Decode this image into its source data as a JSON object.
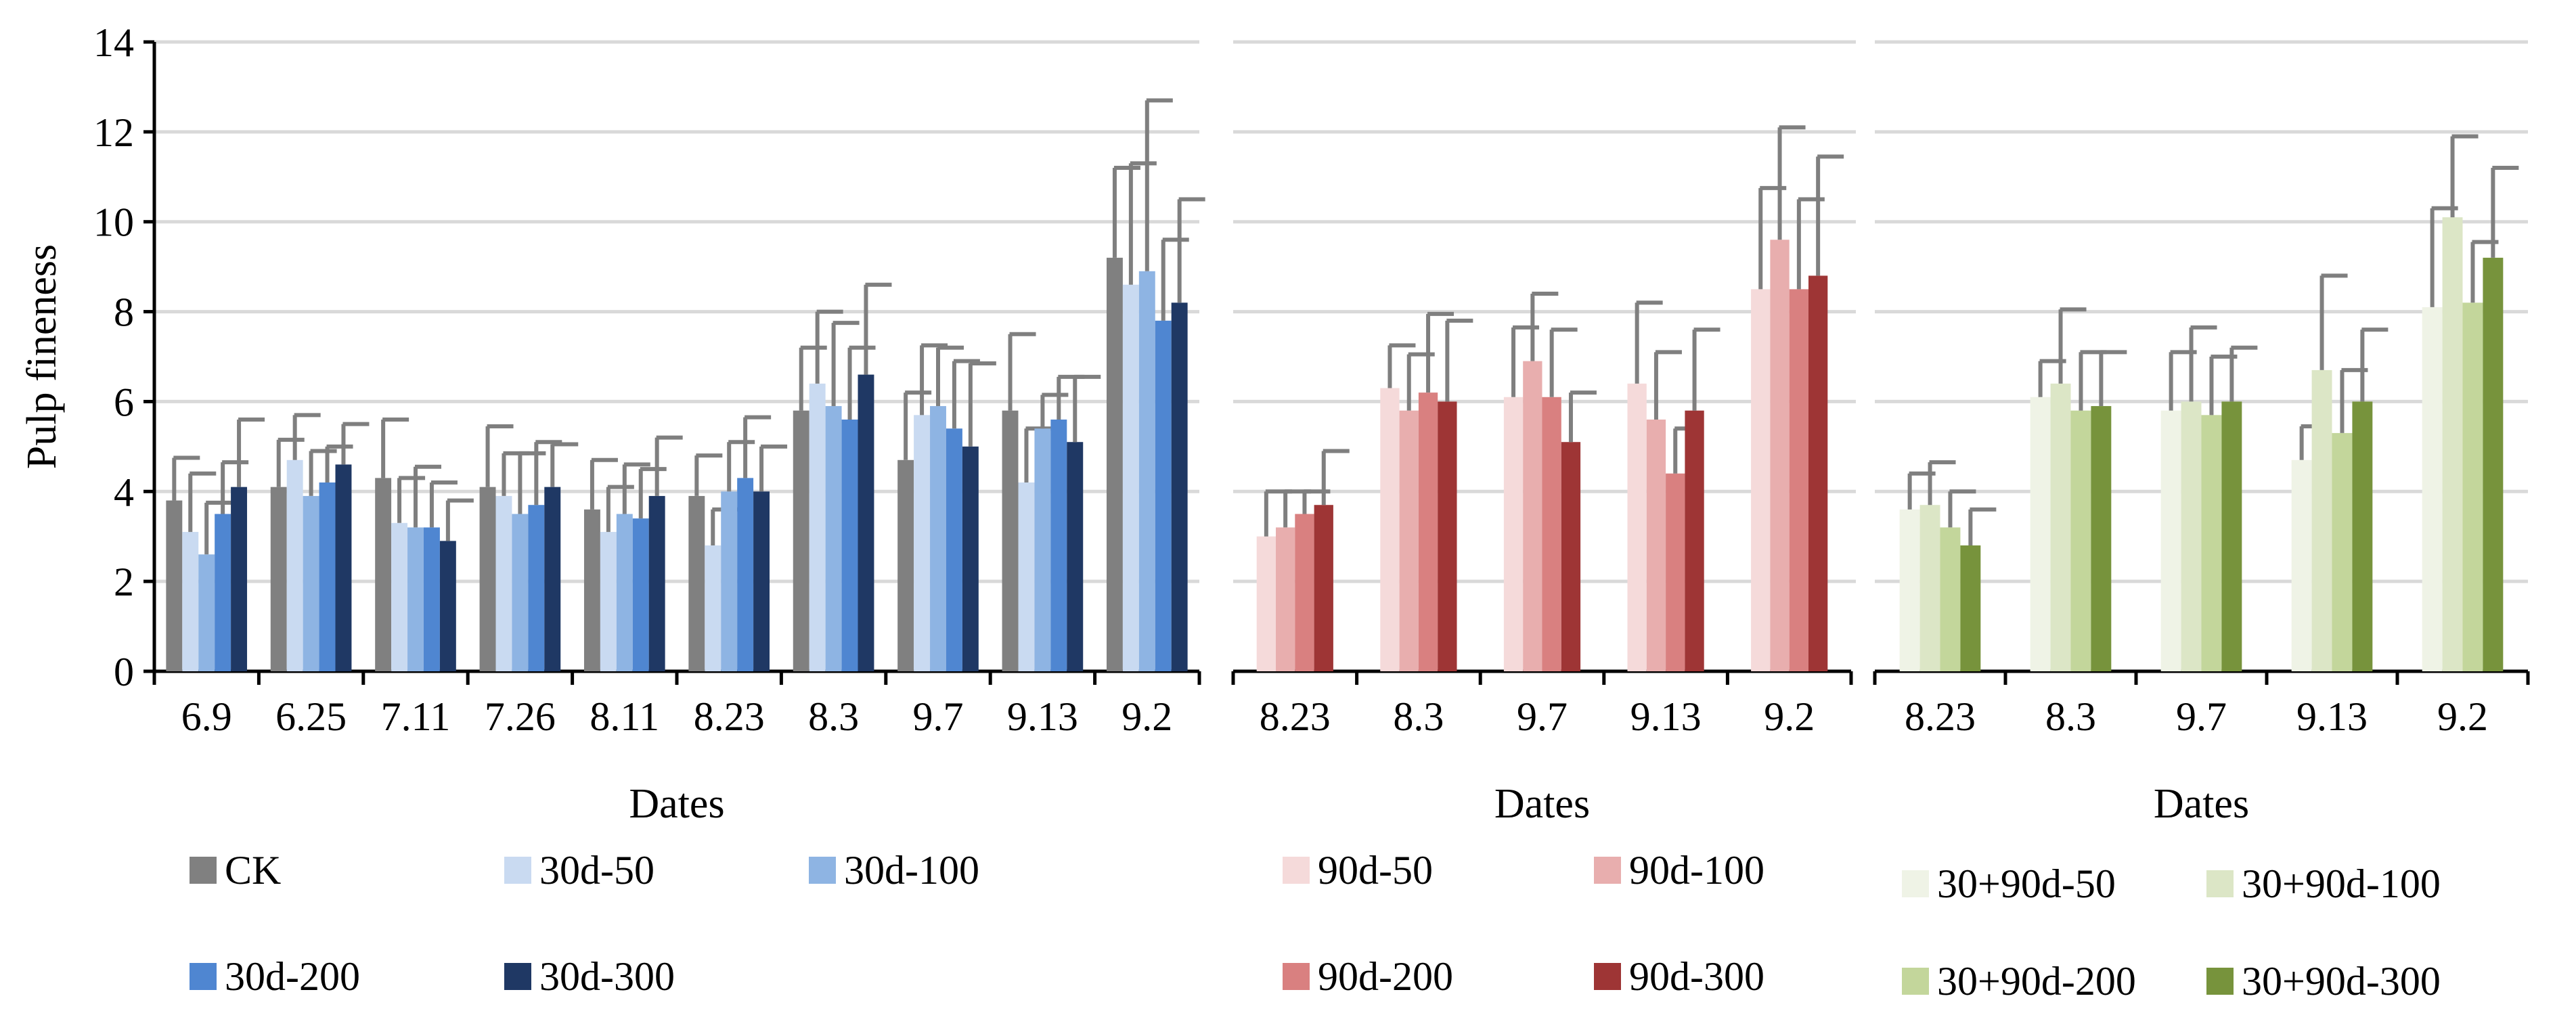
{
  "chart_data": {
    "type": "bar",
    "ylabel": "Pulp fineness",
    "ylim": [
      0,
      14
    ],
    "yticks": [
      0,
      2,
      4,
      6,
      8,
      10,
      12,
      14
    ],
    "grid": true,
    "panels": [
      {
        "xlabel": "Dates",
        "categories": [
          "6.9",
          "6.25",
          "7.11",
          "7.26",
          "8.11",
          "8.23",
          "8.3",
          "9.7",
          "9.13",
          "9.2"
        ],
        "series": [
          {
            "name": "CK",
            "color": "#808080",
            "values": [
              3.8,
              4.1,
              4.3,
              4.1,
              3.6,
              3.9,
              5.8,
              4.7,
              5.8,
              9.2
            ],
            "errors": [
              0.95,
              1.05,
              1.3,
              1.35,
              1.1,
              0.9,
              1.4,
              1.5,
              1.7,
              2.0
            ]
          },
          {
            "name": "30d-50",
            "color": "#C9DAF1",
            "values": [
              3.1,
              4.7,
              3.3,
              3.9,
              3.1,
              2.8,
              6.4,
              5.7,
              4.2,
              8.6
            ],
            "errors": [
              1.3,
              1.0,
              1.0,
              0.95,
              1.0,
              0.8,
              1.6,
              1.55,
              1.2,
              2.7
            ]
          },
          {
            "name": "30d-100",
            "color": "#8EB4E3",
            "values": [
              2.6,
              3.9,
              3.2,
              3.5,
              3.5,
              4.0,
              5.9,
              5.9,
              5.4,
              8.9
            ],
            "errors": [
              1.15,
              1.0,
              1.35,
              1.35,
              1.1,
              1.1,
              1.85,
              1.3,
              0.75,
              3.8
            ]
          },
          {
            "name": "30d-200",
            "color": "#4F86D1",
            "values": [
              3.5,
              4.2,
              3.2,
              3.7,
              3.4,
              4.3,
              5.6,
              5.4,
              5.6,
              7.8
            ],
            "errors": [
              1.15,
              0.8,
              1.0,
              1.4,
              1.1,
              1.35,
              1.6,
              1.5,
              0.95,
              1.8
            ]
          },
          {
            "name": "30d-300",
            "color": "#1F3864",
            "values": [
              4.1,
              4.6,
              2.9,
              4.1,
              3.9,
              4.0,
              6.6,
              5.0,
              5.1,
              8.2
            ],
            "errors": [
              1.5,
              0.9,
              0.9,
              0.95,
              1.3,
              1.0,
              2.0,
              1.85,
              1.45,
              2.3
            ]
          }
        ]
      },
      {
        "xlabel": "Dates",
        "categories": [
          "8.23",
          "8.3",
          "9.7",
          "9.13",
          "9.2"
        ],
        "series": [
          {
            "name": "90d-50",
            "color": "#F5DADA",
            "values": [
              3.0,
              6.3,
              6.1,
              6.4,
              8.5
            ],
            "errors": [
              1.0,
              0.95,
              1.55,
              1.8,
              2.25
            ]
          },
          {
            "name": "90d-100",
            "color": "#E8AEAE",
            "values": [
              3.2,
              5.8,
              6.9,
              5.6,
              9.6
            ],
            "errors": [
              0.8,
              1.25,
              1.5,
              1.5,
              2.5
            ]
          },
          {
            "name": "90d-200",
            "color": "#D98080",
            "values": [
              3.5,
              6.2,
              6.1,
              4.4,
              8.5
            ],
            "errors": [
              0.5,
              1.75,
              1.5,
              1.0,
              2.0
            ]
          },
          {
            "name": "90d-300",
            "color": "#9E3535",
            "values": [
              3.7,
              6.0,
              5.1,
              5.8,
              8.8
            ],
            "errors": [
              1.2,
              1.8,
              1.1,
              1.8,
              2.65
            ]
          }
        ]
      },
      {
        "xlabel": "Dates",
        "categories": [
          "8.23",
          "8.3",
          "9.7",
          "9.13",
          "9.2"
        ],
        "series": [
          {
            "name": "30+90d-50",
            "color": "#EFF3E6",
            "values": [
              3.6,
              6.1,
              5.8,
              4.7,
              8.1
            ],
            "errors": [
              0.8,
              0.8,
              1.3,
              0.75,
              2.2
            ]
          },
          {
            "name": "30+90d-100",
            "color": "#DCE6C6",
            "values": [
              3.7,
              6.4,
              6.0,
              6.7,
              10.1
            ],
            "errors": [
              0.95,
              1.65,
              1.65,
              2.1,
              1.8
            ]
          },
          {
            "name": "30+90d-200",
            "color": "#C3D69B",
            "values": [
              3.2,
              5.8,
              5.7,
              5.3,
              8.2
            ],
            "errors": [
              0.8,
              1.3,
              1.3,
              1.4,
              1.35
            ]
          },
          {
            "name": "30+90d-300",
            "color": "#77933C",
            "values": [
              2.8,
              5.9,
              6.0,
              6.0,
              9.2
            ],
            "errors": [
              0.8,
              1.2,
              1.2,
              1.6,
              2.0
            ]
          }
        ]
      }
    ]
  }
}
